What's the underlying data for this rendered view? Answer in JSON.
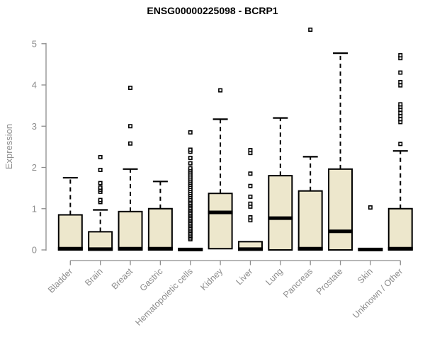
{
  "title": "ENSG00000225098 - BCRP1",
  "colors": {
    "background": "#FFFFFF",
    "box_fill": "#EDE7CC",
    "box_stroke": "#000000",
    "median_color": "#000000",
    "whisker_color": "#000000",
    "axis_color": "#8C8C8C",
    "axis_text_color": "#8C8C8C",
    "title_color": "#000000"
  },
  "chart_data": {
    "type": "boxplot",
    "title": "ENSG00000225098 - BCRP1",
    "xlabel": "",
    "ylabel": "Expression",
    "ylim": [
      0,
      5
    ],
    "yticks": [
      0,
      1,
      2,
      3,
      4,
      5
    ],
    "grid": false,
    "legend": "none",
    "categories": [
      "Bladder",
      "Brain",
      "Breast",
      "Gastric",
      "Hematopoietic cells",
      "Kidney",
      "Liver",
      "Lung",
      "Pancreas",
      "Prostate",
      "Skin",
      "Unknown / Other"
    ],
    "series": [
      {
        "name": "Bladder",
        "q1": 0,
        "median": 0.03,
        "q3": 0.85,
        "whisker_low": 0,
        "whisker_high": 1.75,
        "outliers": []
      },
      {
        "name": "Brain",
        "q1": 0,
        "median": 0.02,
        "q3": 0.44,
        "whisker_low": 0,
        "whisker_high": 0.97,
        "outliers": [
          1.16,
          1.21,
          1.41,
          1.46,
          1.51,
          1.62,
          1.94,
          2.25
        ]
      },
      {
        "name": "Breast",
        "q1": 0,
        "median": 0.03,
        "q3": 0.93,
        "whisker_low": 0,
        "whisker_high": 1.96,
        "outliers": [
          2.58,
          3.0,
          3.93
        ]
      },
      {
        "name": "Gastric",
        "q1": 0,
        "median": 0.03,
        "q3": 1.0,
        "whisker_low": 0,
        "whisker_high": 1.66,
        "outliers": []
      },
      {
        "name": "Hematopoietic cells",
        "q1": 0,
        "median": 0.01,
        "q3": 0.03,
        "whisker_low": 0,
        "whisker_high": 0.03,
        "outliers": [
          0.26,
          0.3,
          0.34,
          0.38,
          0.42,
          0.46,
          0.5,
          0.54,
          0.58,
          0.62,
          0.66,
          0.7,
          0.74,
          0.78,
          0.82,
          0.86,
          0.9,
          0.94,
          0.98,
          1.02,
          1.06,
          1.1,
          1.14,
          1.18,
          1.22,
          1.28,
          1.33,
          1.38,
          1.43,
          1.48,
          1.53,
          1.58,
          1.63,
          1.68,
          1.73,
          1.78,
          1.83,
          1.88,
          1.93,
          1.98,
          2.1,
          2.23,
          2.38,
          2.43,
          2.85
        ]
      },
      {
        "name": "Kidney",
        "q1": 0.03,
        "median": 0.91,
        "q3": 1.37,
        "whisker_low": 0.03,
        "whisker_high": 3.17,
        "outliers": [
          3.87
        ]
      },
      {
        "name": "Liver",
        "q1": 0,
        "median": 0.02,
        "q3": 0.2,
        "whisker_low": 0,
        "whisker_high": 0.2,
        "outliers": [
          0.72,
          0.79,
          1.05,
          1.12,
          1.29,
          1.55,
          1.85,
          2.35,
          2.42
        ]
      },
      {
        "name": "Lung",
        "q1": 0,
        "median": 0.77,
        "q3": 1.8,
        "whisker_low": 0,
        "whisker_high": 3.2,
        "outliers": []
      },
      {
        "name": "Pancreas",
        "q1": 0,
        "median": 0.03,
        "q3": 1.43,
        "whisker_low": 0,
        "whisker_high": 2.26,
        "outliers": [
          5.34
        ]
      },
      {
        "name": "Prostate",
        "q1": 0,
        "median": 0.45,
        "q3": 1.96,
        "whisker_low": 0,
        "whisker_high": 4.77,
        "outliers": []
      },
      {
        "name": "Skin",
        "q1": 0,
        "median": 0.01,
        "q3": 0.03,
        "whisker_low": 0,
        "whisker_high": 0.03,
        "outliers": [
          1.03
        ]
      },
      {
        "name": "Unknown / Other",
        "q1": 0,
        "median": 0.03,
        "q3": 1.0,
        "whisker_low": 0,
        "whisker_high": 2.4,
        "outliers": [
          2.57,
          3.1,
          3.17,
          3.25,
          3.32,
          3.4,
          3.47,
          3.53,
          3.99,
          4.07,
          4.3,
          4.65,
          4.72
        ]
      }
    ]
  }
}
